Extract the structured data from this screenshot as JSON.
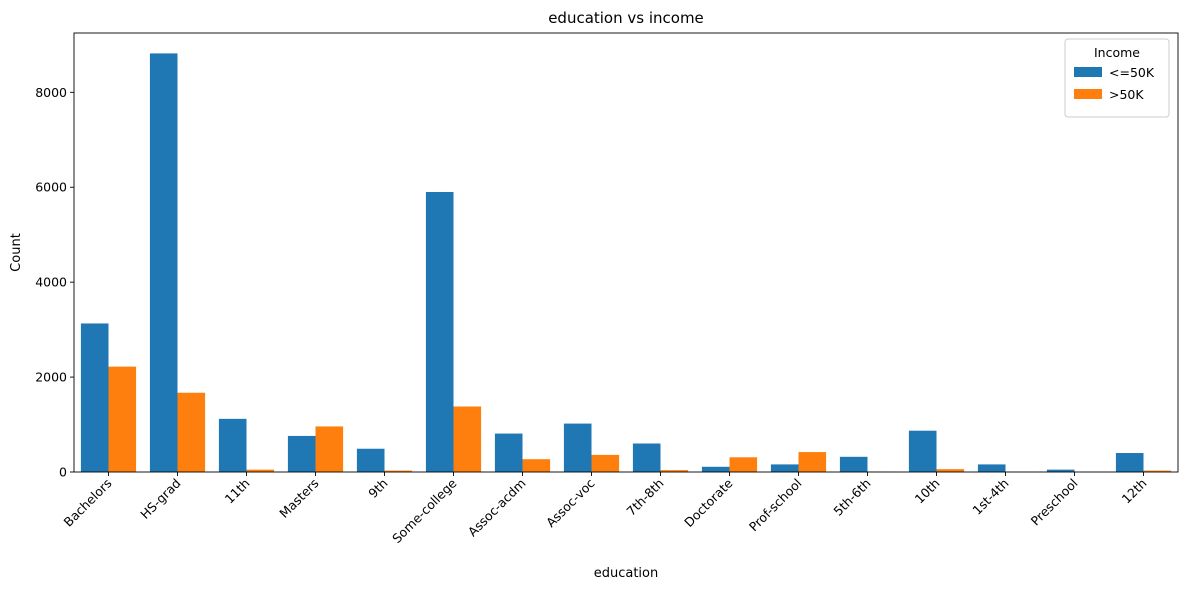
{
  "chart_data": {
    "type": "bar",
    "title": "education vs income",
    "xlabel": "education",
    "ylabel": "Count",
    "ylim": [
      0,
      9250
    ],
    "yticks": [
      0,
      2000,
      4000,
      6000,
      8000
    ],
    "grid": false,
    "legend": {
      "title": "Income",
      "placement": "top-right"
    },
    "categories": [
      "Bachelors",
      "HS-grad",
      "11th",
      "Masters",
      "9th",
      "Some-college",
      "Assoc-acdm",
      "Assoc-voc",
      "7th-8th",
      "Doctorate",
      "Prof-school",
      "5th-6th",
      "10th",
      "1st-4th",
      "Preschool",
      "12th"
    ],
    "series": [
      {
        "name": "<=50K",
        "color": "#1f77b4",
        "values": [
          3130,
          8820,
          1120,
          760,
          490,
          5900,
          810,
          1020,
          600,
          110,
          160,
          320,
          870,
          160,
          50,
          400
        ]
      },
      {
        "name": ">50K",
        "color": "#ff7f0e",
        "values": [
          2220,
          1670,
          50,
          960,
          30,
          1380,
          270,
          360,
          40,
          310,
          420,
          10,
          60,
          5,
          0,
          30
        ]
      }
    ]
  }
}
